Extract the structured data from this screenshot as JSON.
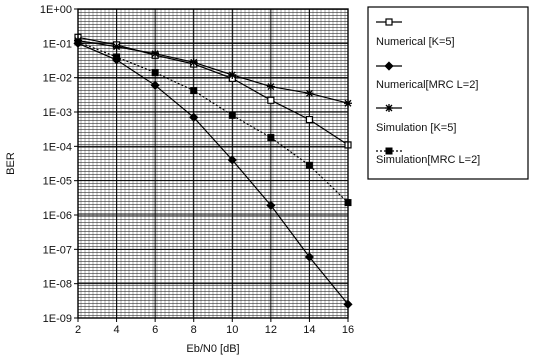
{
  "chart_data": {
    "type": "line",
    "title": "",
    "xlabel": "Eb/N0 [dB]",
    "ylabel": "BER",
    "x_ticks": [
      "2",
      "4",
      "6",
      "8",
      "10",
      "12",
      "14",
      "16"
    ],
    "y_ticks": [
      "1E+00",
      "1E-01",
      "1E-02",
      "1E-03",
      "1E-04",
      "1E-05",
      "1E-06",
      "1E-07",
      "1E-08",
      "1E-09"
    ],
    "xlim": [
      2,
      16
    ],
    "ylim": [
      1e-09,
      1
    ],
    "y_scale": "log",
    "grid": true,
    "legend_position": "right",
    "x": [
      2,
      4,
      6,
      8,
      10,
      12,
      14,
      16
    ],
    "series": [
      {
        "name": "Numerical [K=5]",
        "marker": "square",
        "line_style": "solid",
        "values": [
          0.15,
          0.09,
          0.045,
          0.025,
          0.0095,
          0.0022,
          0.0006,
          0.00011
        ]
      },
      {
        "name": "Numerical[MRC L=2]",
        "marker": "diamond",
        "line_style": "solid",
        "values": [
          0.1,
          0.033,
          0.006,
          0.0007,
          4e-05,
          1.9e-06,
          6e-08,
          2.5e-09
        ]
      },
      {
        "name": "Simulation [K=5]",
        "marker": "star",
        "line_style": "solid",
        "values": [
          0.12,
          0.08,
          0.05,
          0.028,
          0.012,
          0.0055,
          0.0035,
          0.0018
        ]
      },
      {
        "name": "Simulation[MRC L=2]",
        "marker": "filled-square",
        "line_style": "dotted",
        "values": [
          0.11,
          0.04,
          0.014,
          0.0042,
          0.0008,
          0.00018,
          2.8e-05,
          2.3e-06
        ]
      }
    ]
  }
}
